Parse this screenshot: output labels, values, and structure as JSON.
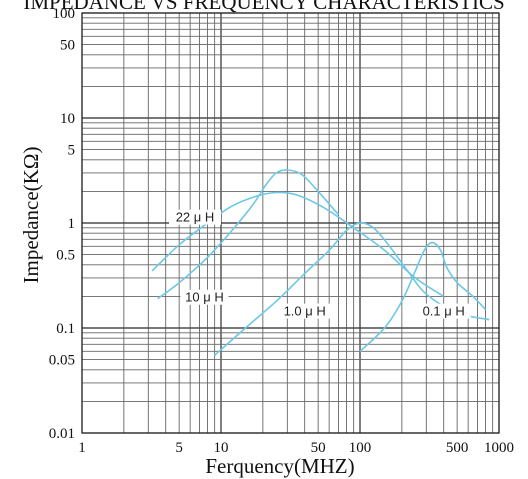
{
  "chart_data": {
    "type": "line",
    "title": "IMPEDANCE VS FREQUENCY CHARACTERISTICS",
    "xlabel": "Ferquency(MHZ)",
    "ylabel": "Impedance(KΩ)",
    "x_scale": "log",
    "y_scale": "log",
    "xlim": [
      1,
      1000
    ],
    "ylim": [
      0.01,
      100
    ],
    "grid": true,
    "x_ticks": [
      1,
      5,
      10,
      50,
      100,
      500,
      1000
    ],
    "x_tick_labels": [
      "1",
      "5",
      "10",
      "50",
      "100",
      "500",
      "1000"
    ],
    "y_ticks": [
      0.01,
      0.05,
      0.1,
      0.5,
      1,
      5,
      10,
      50,
      100
    ],
    "y_tick_labels": [
      "0.01",
      "0.05",
      "0.1",
      "0.5",
      "1",
      "5",
      "10",
      "50",
      "100"
    ],
    "line_color": "#6cc8e6",
    "series": [
      {
        "name": "22 μ H",
        "points": [
          [
            3.2,
            0.35
          ],
          [
            5,
            0.62
          ],
          [
            8,
            1.0
          ],
          [
            12,
            1.45
          ],
          [
            18,
            1.8
          ],
          [
            25,
            1.95
          ],
          [
            35,
            1.85
          ],
          [
            55,
            1.4
          ],
          [
            90,
            0.9
          ],
          [
            150,
            0.55
          ],
          [
            250,
            0.3
          ],
          [
            400,
            0.2
          ]
        ]
      },
      {
        "name": "10 μ H",
        "points": [
          [
            3.5,
            0.19
          ],
          [
            5,
            0.27
          ],
          [
            8,
            0.47
          ],
          [
            12,
            0.85
          ],
          [
            17,
            1.5
          ],
          [
            21,
            2.3
          ],
          [
            25,
            3.0
          ],
          [
            30,
            3.2
          ],
          [
            38,
            2.9
          ],
          [
            50,
            2.0
          ],
          [
            70,
            1.2
          ]
        ]
      },
      {
        "name": "1.0 μ H",
        "points": [
          [
            9,
            0.055
          ],
          [
            15,
            0.1
          ],
          [
            25,
            0.18
          ],
          [
            40,
            0.33
          ],
          [
            60,
            0.55
          ],
          [
            80,
            0.85
          ],
          [
            100,
            1.0
          ],
          [
            125,
            0.9
          ],
          [
            160,
            0.62
          ],
          [
            220,
            0.35
          ],
          [
            300,
            0.21
          ],
          [
            500,
            0.14
          ],
          [
            850,
            0.12
          ]
        ]
      },
      {
        "name": "0.1 μ H",
        "points": [
          [
            100,
            0.06
          ],
          [
            150,
            0.1
          ],
          [
            200,
            0.18
          ],
          [
            250,
            0.35
          ],
          [
            290,
            0.55
          ],
          [
            330,
            0.65
          ],
          [
            380,
            0.55
          ],
          [
            420,
            0.38
          ],
          [
            500,
            0.27
          ],
          [
            650,
            0.2
          ],
          [
            800,
            0.15
          ]
        ]
      }
    ]
  }
}
